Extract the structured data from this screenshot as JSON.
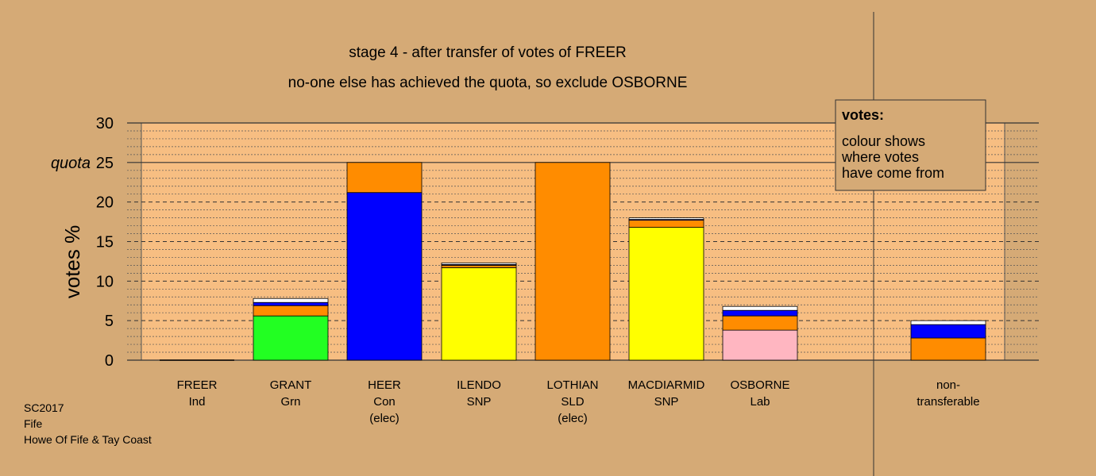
{
  "title": "stage 4 - after transfer of votes of FREER",
  "subtitle": "no-one else has achieved the quota, so exclude OSBORNE",
  "ylabel": "votes %",
  "quota_label": "quota",
  "legend": {
    "heading": "votes:",
    "lines": [
      "colour shows",
      "where votes",
      "have come from"
    ]
  },
  "footer": [
    "SC2017",
    "Fife",
    "Howe Of Fife & Tay Coast"
  ],
  "colors": {
    "background": "#d5aa76",
    "plot_area": "#f7be82",
    "Con": "#0000ff",
    "SNP": "#ffff00",
    "SLD": "#ff8c00",
    "Lab": "#ffb6c1",
    "Grn": "#22ff22",
    "Ind": "#ffffff"
  },
  "chart_data": {
    "type": "bar",
    "stacked": true,
    "ylim": [
      0,
      30
    ],
    "yticks": [
      0,
      5,
      10,
      15,
      20,
      25,
      30
    ],
    "quota": 25,
    "grid": true,
    "legend_position": "top-right",
    "categories": [
      {
        "lines": [
          "FREER",
          "Ind"
        ],
        "segments": []
      },
      {
        "lines": [
          "GRANT",
          "Grn"
        ],
        "segments": [
          {
            "party": "Grn",
            "value": 5.6
          },
          {
            "party": "SLD",
            "value": 1.3
          },
          {
            "party": "Con",
            "value": 0.4
          },
          {
            "party": "Ind",
            "value": 0.5
          }
        ]
      },
      {
        "lines": [
          "HEER",
          "Con",
          "(elec)"
        ],
        "segments": [
          {
            "party": "Con",
            "value": 21.2
          },
          {
            "party": "SLD",
            "value": 3.8
          }
        ]
      },
      {
        "lines": [
          "ILENDO",
          "SNP"
        ],
        "segments": [
          {
            "party": "SNP",
            "value": 11.7
          },
          {
            "party": "SLD",
            "value": 0.3
          },
          {
            "party": "Con",
            "value": 0.1
          },
          {
            "party": "Ind",
            "value": 0.2
          }
        ]
      },
      {
        "lines": [
          "LOTHIAN",
          "SLD",
          "(elec)"
        ],
        "segments": [
          {
            "party": "SLD",
            "value": 25.0
          }
        ]
      },
      {
        "lines": [
          "MACDIARMID",
          "SNP"
        ],
        "segments": [
          {
            "party": "SNP",
            "value": 16.8
          },
          {
            "party": "SLD",
            "value": 0.9
          },
          {
            "party": "Con",
            "value": 0.1
          },
          {
            "party": "Ind",
            "value": 0.2
          }
        ]
      },
      {
        "lines": [
          "OSBORNE",
          "Lab"
        ],
        "segments": [
          {
            "party": "Lab",
            "value": 3.8
          },
          {
            "party": "SLD",
            "value": 1.8
          },
          {
            "party": "Con",
            "value": 0.7
          },
          {
            "party": "Ind",
            "value": 0.5
          }
        ]
      },
      {
        "lines": [
          "non-",
          "transferable"
        ],
        "segments": [
          {
            "party": "SLD",
            "value": 2.8
          },
          {
            "party": "Con",
            "value": 1.7
          },
          {
            "party": "Ind",
            "value": 0.5
          }
        ]
      }
    ]
  }
}
